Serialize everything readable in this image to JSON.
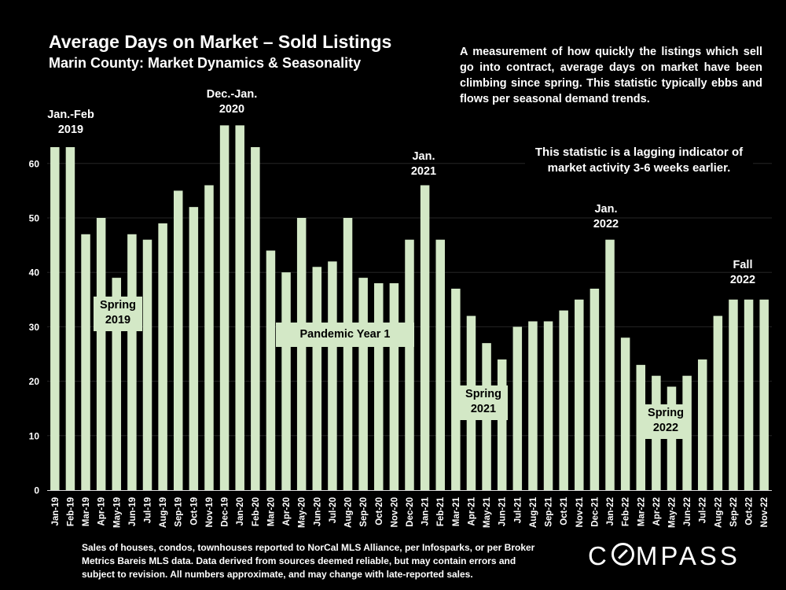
{
  "chart_data": {
    "type": "bar",
    "title": "Average Days on Market – Sold Listings",
    "subtitle": "Marin County: Market Dynamics & Seasonality",
    "xlabel": "",
    "ylabel": "",
    "ylim": [
      0,
      65
    ],
    "yticks": [
      0,
      10,
      20,
      30,
      40,
      50,
      60
    ],
    "grid": true,
    "bar_color": "#d3e8c6",
    "categories": [
      "Jan-19",
      "Feb-19",
      "Mar-19",
      "Apr-19",
      "May-19",
      "Jun-19",
      "Jul-19",
      "Aug-19",
      "Sep-19",
      "Oct-19",
      "Nov-19",
      "Dec-19",
      "Jan-20",
      "Feb-20",
      "Mar-20",
      "Apr-20",
      "May-20",
      "Jun-20",
      "Jul-20",
      "Aug-20",
      "Sep-20",
      "Oct-20",
      "Nov-20",
      "Dec-20",
      "Jan-21",
      "Feb-21",
      "Mar-21",
      "Apr-21",
      "May-21",
      "Jun-21",
      "Jul-21",
      "Aug-21",
      "Sep-21",
      "Oct-21",
      "Nov-21",
      "Dec-21",
      "Jan-22",
      "Feb-22",
      "Mar-22",
      "Apr-22",
      "May-22",
      "Jun-22",
      "Jul-22",
      "Aug-22",
      "Sep-22",
      "Oct-22",
      "Nov-22"
    ],
    "values": [
      63,
      63,
      47,
      50,
      39,
      47,
      46,
      49,
      55,
      52,
      56,
      67,
      67,
      63,
      44,
      40,
      50,
      41,
      42,
      50,
      39,
      38,
      38,
      46,
      56,
      46,
      37,
      32,
      27,
      24,
      30,
      31,
      31,
      33,
      35,
      37,
      46,
      28,
      23,
      21,
      19,
      21,
      24,
      32,
      35,
      35,
      35
    ],
    "description": "A measurement of how quickly the listings which sell go into contract, average days on market have been climbing since spring. This statistic typically ebbs and flows per seasonal demand trends.",
    "lagging_note": "This statistic is a lagging indicator of market activity 3-6 weeks earlier.",
    "annotations": {
      "jan_feb_2019": [
        "Jan.-Feb",
        "2019"
      ],
      "dec_jan_2020": [
        "Dec.-Jan.",
        "2020"
      ],
      "jan_2021": [
        "Jan.",
        "2021"
      ],
      "jan_2022": [
        "Jan.",
        "2022"
      ],
      "fall_2022": [
        "Fall",
        "2022"
      ],
      "spring_2019": [
        "Spring",
        "2019"
      ],
      "pandemic": "Pandemic Year 1",
      "spring_2021": [
        "Spring",
        "2021"
      ],
      "spring_2022": [
        "Spring",
        "2022"
      ]
    }
  },
  "footer": {
    "note": "Sales of houses, condos, townhouses reported to NorCal MLS Alliance, per Infosparks, or per Broker Metrics Bareis MLS data. Data derived from sources deemed reliable, but may contain errors and subject to revision. All numbers approximate, and may change with late-reported sales.",
    "logo_pre": "C",
    "logo_post": "MPASS"
  }
}
